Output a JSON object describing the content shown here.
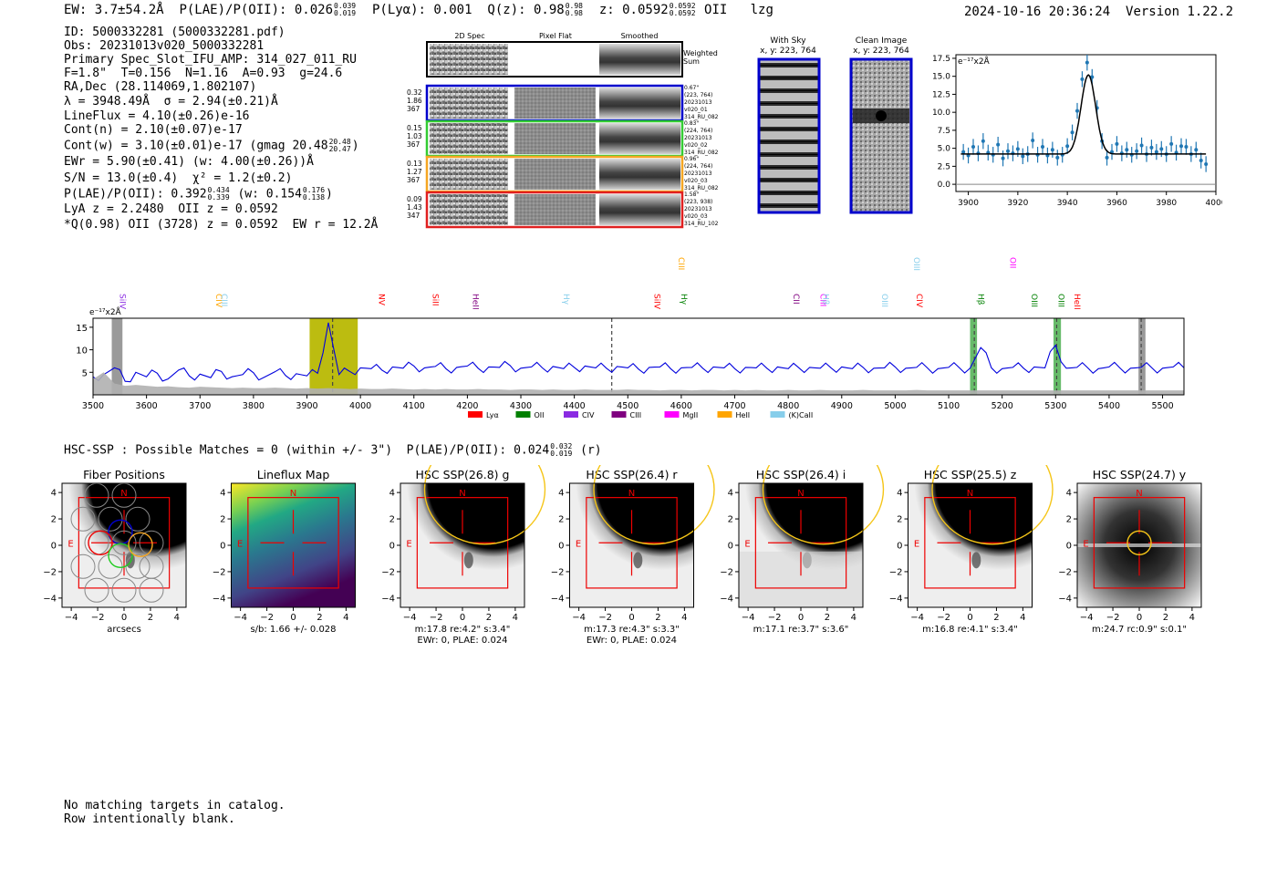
{
  "header": {
    "ew": "EW: 3.7±54.2Å",
    "plae_label": "P(LAE)/P(OII): 0.026",
    "plae_hi": "0.039",
    "plae_lo": "0.019",
    "plya": "P(Lyα): 0.001",
    "qz_label": "Q(z): 0.98",
    "qz_hi": "0.98",
    "qz_lo": "0.98",
    "z_label": "z: 0.0592",
    "z_hi": "0.0592",
    "z_lo": "0.0592",
    "z_line": "OII",
    "flag": "lzg",
    "timestamp": "2024-10-16 20:36:24",
    "version": "Version 1.22.2"
  },
  "info": {
    "id": "ID: 5000332281 (5000332281.pdf)",
    "obs": "Obs: 20231013v020_5000332281",
    "primary": "Primary Spec_Slot_IFU_AMP: 314_027_011_RU",
    "fparams": "F=1.8\"  T=0.156  N=1.16  A=0.93  g=24.6",
    "radec": "RA,Dec (28.114069,1.802107)",
    "lambda": "λ = 3948.49Å  σ = 2.94(±0.21)Å",
    "lineflux": "LineFlux = 4.10(±0.26)e-16",
    "contn": "Cont(n) = 2.10(±0.07)e-17",
    "contw": "Cont(w) = 3.10(±0.01)e-17 (gmag 20.48",
    "contw_hi": "20.48",
    "contw_lo": "20.47",
    "contw_end": ")",
    "ewr": "EWr = 5.90(±0.41) (w: 4.00(±0.26))Å",
    "sn": "S/N = 13.0(±0.4)  χ² = 1.2(±0.2)",
    "plae2": "P(LAE)/P(OII): 0.392",
    "plae2_hi": "0.434",
    "plae2_lo": "0.339",
    "plae2_w": "(w: 0.154",
    "plae2_w_hi": "0.176",
    "plae2_w_lo": "0.138",
    "plae2_end": ")",
    "lya": "LyA z = 2.2480  OII z = 0.0592",
    "qline": "*Q(0.98) OII (3728) z = 0.0592  EW r = 12.2Å"
  },
  "cutouts": {
    "col_headers": [
      "2D Spec",
      "Pixel Flat",
      "Smoothed"
    ],
    "weighted_sum": "Weighted\nSum",
    "rows": [
      {
        "color": "#0000cc",
        "stats": [
          "0.32",
          "1.86",
          "367"
        ],
        "meta": [
          "0.67\"",
          "(223, 764)",
          "20231013",
          "v020_01",
          "314_RU_082"
        ]
      },
      {
        "color": "#33cc33",
        "stats": [
          "0.15",
          "1.03",
          "367"
        ],
        "meta": [
          "0.83\"",
          "(224, 764)",
          "20231013",
          "v020_02",
          "314_RU_082"
        ]
      },
      {
        "color": "#f5a623",
        "stats": [
          "0.13",
          "1.27",
          "367"
        ],
        "meta": [
          "0.96\"",
          "(224, 764)",
          "20231013",
          "v020_03",
          "314_RU_082"
        ]
      },
      {
        "color": "#e02020",
        "stats": [
          "0.09",
          "1.43",
          "347"
        ],
        "meta": [
          "1.58\"",
          "(223, 938)",
          "20231013",
          "v020_03",
          "314_RU_102"
        ]
      }
    ],
    "with_sky": "With Sky",
    "with_sky_xy": "x, y: 223, 764",
    "clean": "Clean Image",
    "clean_xy": "x, y: 223, 764"
  },
  "zoom_chart": {
    "ylabel": "e⁻¹⁷x2Å"
  },
  "spectrum": {
    "ylabel": "e⁻¹⁷x2Å",
    "legend": [
      {
        "name": "Lyα",
        "color": "#ff0000"
      },
      {
        "name": "OII",
        "color": "#008000"
      },
      {
        "name": "CIV",
        "color": "#8a2be2"
      },
      {
        "name": "CIII",
        "color": "#800080"
      },
      {
        "name": "MgII",
        "color": "#ff00ff"
      },
      {
        "name": "HeII",
        "color": "#ffa500"
      },
      {
        "name": "(K)CaII",
        "color": "#87ceeb"
      }
    ],
    "line_labels": [
      {
        "text": "SiIV",
        "x": 3545,
        "row": 1,
        "color": "#8a2be2"
      },
      {
        "text": "CIV",
        "x": 3725,
        "row": 1,
        "color": "#ffa500"
      },
      {
        "text": "CIII",
        "x": 3735,
        "row": 1,
        "color": "#87ceeb"
      },
      {
        "text": "NV",
        "x": 4030,
        "row": 1,
        "color": "#ff0000"
      },
      {
        "text": "SiII",
        "x": 4130,
        "row": 1,
        "color": "#ff0000"
      },
      {
        "text": "HeII",
        "x": 4205,
        "row": 1,
        "color": "#800080"
      },
      {
        "text": "Hγ",
        "x": 4375,
        "row": 1,
        "color": "#87ceeb"
      },
      {
        "text": "SiIV",
        "x": 4545,
        "row": 1,
        "color": "#ff0000"
      },
      {
        "text": "CIII",
        "x": 4590,
        "row": 0,
        "color": "#ffa500"
      },
      {
        "text": "Hγ",
        "x": 4595,
        "row": 1,
        "color": "#008000"
      },
      {
        "text": "CII",
        "x": 4805,
        "row": 1,
        "color": "#800080"
      },
      {
        "text": "CIII",
        "x": 4855,
        "row": 1,
        "color": "#ff00ff"
      },
      {
        "text": "Hβ",
        "x": 4860,
        "row": 1,
        "color": "#87ceeb"
      },
      {
        "text": "OIII",
        "x": 4970,
        "row": 1,
        "color": "#87ceeb"
      },
      {
        "text": "OIII",
        "x": 5030,
        "row": 0,
        "color": "#87ceeb"
      },
      {
        "text": "CIV",
        "x": 5035,
        "row": 1,
        "color": "#ff0000"
      },
      {
        "text": "Hβ",
        "x": 5150,
        "row": 1,
        "color": "#008000"
      },
      {
        "text": "OII",
        "x": 5210,
        "row": 0,
        "color": "#ff00ff"
      },
      {
        "text": "OIII",
        "x": 5250,
        "row": 1,
        "color": "#008000"
      },
      {
        "text": "OIII",
        "x": 5300,
        "row": 1,
        "color": "#008000"
      },
      {
        "text": "HeII",
        "x": 5330,
        "row": 1,
        "color": "#ff0000"
      }
    ]
  },
  "hsc_line": {
    "text": "HSC-SSP : Possible Matches = 0 (within +/- 3\")  P(LAE)/P(OII): 0.024",
    "hi": "0.032",
    "lo": "0.019",
    "end": "(r)"
  },
  "panels": [
    {
      "title": "Fiber Positions",
      "cap1": "arcsecs",
      "cap2": "",
      "kind": "fiber"
    },
    {
      "title": "Lineflux Map",
      "cap1": "s/b: 1.66 +/- 0.028",
      "cap2": "",
      "kind": "lineflux"
    },
    {
      "title": "HSC SSP(26.8) g",
      "cap1": "m:17.8  re:4.2\"  s:3.4\"",
      "cap2": "EWr: 0, PLAE: 0.024",
      "kind": "hsc"
    },
    {
      "title": "HSC SSP(26.4) r",
      "cap1": "m:17.3  re:4.3\"  s:3.3\"",
      "cap2": "EWr: 0, PLAE: 0.024",
      "kind": "hsc"
    },
    {
      "title": "HSC SSP(26.4) i",
      "cap1": "m:17.1  re:3.7\"  s:3.6\"",
      "cap2": "",
      "kind": "hsc_i"
    },
    {
      "title": "HSC SSP(25.5) z",
      "cap1": "m:16.8  re:4.1\"  s:3.4\"",
      "cap2": "",
      "kind": "hsc"
    },
    {
      "title": "HSC SSP(24.7) y",
      "cap1": "m:24.7 rc:0.9\"  s:0.1\"",
      "cap2": "",
      "kind": "hsc_y"
    }
  ],
  "panel_labels": {
    "north": "N",
    "east": "E"
  },
  "footer": {
    "line1": "No matching targets in catalog.",
    "line2": "Row intentionally blank."
  },
  "chart_data": [
    {
      "type": "scatter",
      "title": "",
      "xlabel": "",
      "ylabel": "e⁻¹⁷x2Å",
      "xlim": [
        3895,
        4000
      ],
      "ylim": [
        -1,
        18
      ],
      "xticks": [
        3900,
        3920,
        3940,
        3960,
        3980,
        4000
      ],
      "yticks": [
        0.0,
        2.5,
        5.0,
        7.5,
        10.0,
        12.5,
        15.0,
        17.5
      ],
      "series": [
        {
          "x": [
            3898,
            3900,
            3902,
            3904,
            3906,
            3908,
            3910,
            3912,
            3914,
            3916,
            3918,
            3920,
            3922,
            3924,
            3926,
            3928,
            3930,
            3932,
            3934,
            3936,
            3938,
            3940,
            3942,
            3944,
            3946,
            3948,
            3950,
            3952,
            3954,
            3956,
            3958,
            3960,
            3962,
            3964,
            3966,
            3968,
            3970,
            3972,
            3974,
            3976,
            3978,
            3980,
            3982,
            3984,
            3986,
            3988,
            3990,
            3992,
            3994,
            3996
          ],
          "y": [
            4.5,
            4.0,
            5.2,
            4.3,
            6.0,
            4.4,
            4.1,
            5.5,
            3.6,
            4.6,
            4.3,
            4.9,
            3.9,
            4.2,
            6.1,
            4.1,
            5.2,
            4.0,
            4.8,
            3.7,
            4.1,
            5.3,
            7.2,
            10.2,
            14.6,
            16.9,
            14.9,
            10.6,
            6.0,
            3.7,
            4.5,
            5.6,
            4.3,
            4.8,
            4.1,
            4.6,
            5.4,
            4.2,
            5.1,
            4.5,
            4.9,
            4.2,
            5.6,
            4.4,
            5.3,
            5.2,
            4.2,
            4.8,
            3.3,
            2.8
          ],
          "err": 1.1
        }
      ],
      "model": {
        "continuum": 4.2,
        "amplitude": 11.0,
        "center": 3948.49,
        "sigma": 2.94
      }
    },
    {
      "type": "line",
      "title": "",
      "xlabel": "",
      "ylabel": "e⁻¹⁷x2Å",
      "xlim": [
        3500,
        5540
      ],
      "ylim": [
        0,
        17
      ],
      "xticks": [
        3500,
        3600,
        3700,
        3800,
        3900,
        4000,
        4100,
        4200,
        4300,
        4400,
        4500,
        4600,
        4700,
        4800,
        4900,
        5000,
        5100,
        5200,
        5300,
        5400,
        5500
      ],
      "yticks": [
        5,
        10,
        15
      ],
      "highlight": {
        "x0": 3905,
        "x1": 3995,
        "color": "#bcbc10"
      },
      "bands": [
        {
          "x0": 3535,
          "x1": 3555,
          "color": "#888888"
        },
        {
          "x0": 5140,
          "x1": 5153,
          "color": "#4caf50"
        },
        {
          "x0": 5296,
          "x1": 5310,
          "color": "#4caf50"
        },
        {
          "x0": 5455,
          "x1": 5468,
          "color": "#888888"
        }
      ],
      "vlines": [
        3948,
        4470,
        5148,
        5302,
        5460
      ],
      "series": [
        {
          "name": "flux",
          "color": "#0000dd",
          "x_start": 3500,
          "x_step": 20,
          "values": [
            4.0,
            4.5,
            6.0,
            3.0,
            5.0,
            4.0,
            4.8,
            3.5,
            5.5,
            4.2,
            4.6,
            3.8,
            5.2,
            4.0,
            4.5,
            4.9,
            3.9,
            5.1,
            4.3,
            4.7,
            4.2,
            4.8,
            16.0,
            4.5,
            5.2,
            6.0,
            5.8,
            5.5,
            6.2,
            5.9,
            6.4,
            6.0,
            6.3,
            5.8,
            6.1,
            6.4,
            5.9,
            6.2,
            6.1,
            6.5,
            5.9,
            6.2,
            6.0,
            6.3,
            5.8,
            6.1,
            6.4,
            6.0,
            5.9,
            6.3,
            6.0,
            5.7,
            6.1,
            6.2,
            5.8,
            6.0,
            6.1,
            5.9,
            6.2,
            6.0,
            5.8,
            6.1,
            6.0,
            5.9,
            6.2,
            5.8,
            6.0,
            6.1,
            5.9,
            6.0,
            6.2,
            5.8,
            6.1,
            5.9,
            6.0,
            6.2,
            5.9,
            6.1,
            6.0,
            5.8,
            6.1,
            6.0,
            5.9,
            10.5,
            6.0,
            5.8,
            6.1,
            5.9,
            6.2,
            6.0,
            11.0,
            5.9,
            6.1,
            6.0,
            5.8,
            6.2,
            6.0,
            5.9,
            6.1,
            6.0,
            5.9,
            6.2,
            6.0
          ]
        },
        {
          "name": "error",
          "color": "#b0b0b0",
          "x_start": 3500,
          "x_step": 20,
          "values": [
            3.5,
            5.0,
            2.5,
            2.0,
            2.2,
            2.0,
            1.8,
            1.9,
            1.7,
            1.6,
            1.8,
            1.7,
            1.6,
            1.5,
            1.6,
            1.5,
            1.5,
            1.6,
            1.5,
            1.4,
            1.5,
            1.4,
            1.5,
            1.4,
            1.3,
            1.4,
            1.3,
            1.3,
            1.4,
            1.3,
            1.2,
            1.3,
            1.2,
            1.3,
            1.2,
            1.2,
            1.3,
            1.2,
            1.2,
            1.1,
            1.2,
            1.2,
            1.1,
            1.2,
            1.1,
            1.1,
            1.2,
            1.1,
            1.1,
            1.1,
            1.2,
            1.1,
            1.1,
            1.0,
            1.1,
            1.1,
            1.0,
            1.1,
            1.1,
            1.0,
            1.1,
            1.0,
            1.1,
            1.0,
            1.0,
            1.1,
            1.0,
            1.0,
            1.1,
            1.0,
            1.0,
            1.0,
            1.1,
            1.0,
            1.0,
            1.0,
            1.0,
            1.1,
            1.0,
            1.0,
            1.0,
            1.0,
            1.0,
            1.0,
            1.0,
            1.0,
            1.0,
            1.0,
            1.0,
            1.0,
            1.0,
            1.0,
            1.0,
            1.0,
            1.0,
            1.0,
            1.0,
            1.0,
            1.0,
            1.0,
            1.0,
            1.0,
            1.0
          ]
        }
      ]
    }
  ]
}
